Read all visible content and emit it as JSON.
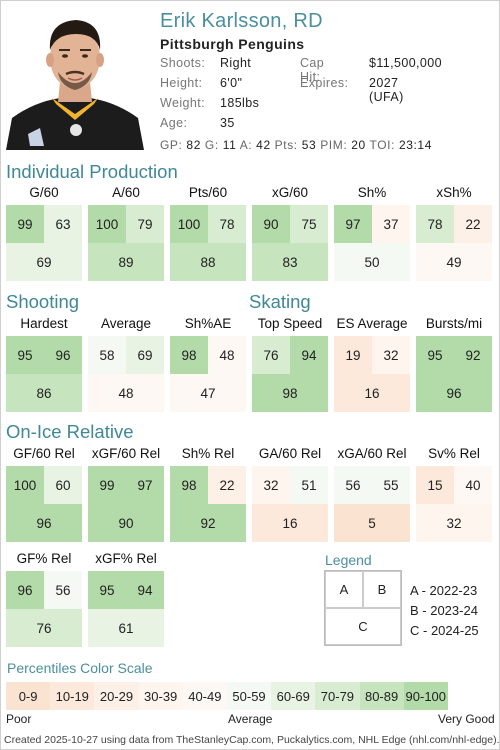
{
  "player": {
    "name": "Erik Karlsson, RD",
    "team": "Pittsburgh Penguins",
    "shoots_label": "Shoots:",
    "shoots": "Right",
    "height_label": "Height:",
    "height": "6'0\"",
    "weight_label": "Weight:",
    "weight": "185lbs",
    "age_label": "Age:",
    "age": "35",
    "caphit_label": "Cap Hit:",
    "caphit": "$11,500,000",
    "expires_label": "Expires:",
    "expires": "2027 (UFA)",
    "gp_label": "GP:",
    "gp": "82",
    "g_label": "G:",
    "g": "11",
    "a_label": "A:",
    "a": "42",
    "pts_label": "Pts:",
    "pts": "53",
    "pim_label": "PIM:",
    "pim": "20",
    "toi_label": "TOI:",
    "toi": "23:14"
  },
  "sections": {
    "individual": "Individual Production",
    "shooting": "Shooting",
    "skating": "Skating",
    "onice": "On-Ice Relative"
  },
  "metrics": {
    "g60": {
      "label": "G/60",
      "a": 99,
      "b": 63,
      "c": 69
    },
    "a60": {
      "label": "A/60",
      "a": 100,
      "b": 79,
      "c": 89
    },
    "pts60": {
      "label": "Pts/60",
      "a": 100,
      "b": 78,
      "c": 88
    },
    "xg60": {
      "label": "xG/60",
      "a": 90,
      "b": 75,
      "c": 83
    },
    "shpct": {
      "label": "Sh%",
      "a": 97,
      "b": 37,
      "c": 50
    },
    "xshpct": {
      "label": "xSh%",
      "a": 78,
      "b": 22,
      "c": 49
    },
    "hardest": {
      "label": "Hardest",
      "a": 95,
      "b": 96,
      "c": 86
    },
    "average": {
      "label": "Average",
      "a": 58,
      "b": 69,
      "c": 48
    },
    "shae": {
      "label": "Sh%AE",
      "a": 98,
      "b": 48,
      "c": 47
    },
    "topspeed": {
      "label": "Top Speed",
      "a": 76,
      "b": 94,
      "c": 98
    },
    "esavg": {
      "label": "ES Average",
      "a": 19,
      "b": 32,
      "c": 16
    },
    "bursts": {
      "label": "Bursts/mi",
      "a": 95,
      "b": 92,
      "c": 96
    },
    "gf60rel": {
      "label": "GF/60 Rel",
      "a": 100,
      "b": 60,
      "c": 96
    },
    "xgf60rel": {
      "label": "xGF/60 Rel",
      "a": 99,
      "b": 97,
      "c": 90
    },
    "shrel": {
      "label": "Sh% Rel",
      "a": 98,
      "b": 22,
      "c": 92
    },
    "ga60rel": {
      "label": "GA/60 Rel",
      "a": 32,
      "b": 51,
      "c": 16
    },
    "xga60rel": {
      "label": "xGA/60 Rel",
      "a": 56,
      "b": 55,
      "c": 5
    },
    "svrel": {
      "label": "Sv% Rel",
      "a": 15,
      "b": 40,
      "c": 32
    },
    "gfpctrel": {
      "label": "GF% Rel",
      "a": 96,
      "b": 56,
      "c": 76
    },
    "xgfpctrel": {
      "label": "xGF% Rel",
      "a": 95,
      "b": 94,
      "c": 61
    }
  },
  "legend": {
    "title": "Legend",
    "a": "A",
    "b": "B",
    "c": "C",
    "key_a": "A - 2022-23",
    "key_b": "B - 2023-24",
    "key_c": "C - 2024-25"
  },
  "scale": {
    "title": "Percentiles Color Scale",
    "bins": [
      "0-9",
      "10-19",
      "20-29",
      "30-39",
      "40-49",
      "50-59",
      "60-69",
      "70-79",
      "80-89",
      "90-100"
    ],
    "colors": [
      "#fbe3d2",
      "#fce9dc",
      "#fdf0e6",
      "#fef5ef",
      "#fdf8f4",
      "#f5f9f3",
      "#e8f3e4",
      "#d8ecd2",
      "#c6e4be",
      "#b3dba9"
    ],
    "poor": "Poor",
    "average": "Average",
    "very_good": "Very Good"
  },
  "footer": "Created 2025-10-27 using data from TheStanleyCap.com, Puckalytics.com, NHL Edge (nhl.com/nhl-edge)."
}
